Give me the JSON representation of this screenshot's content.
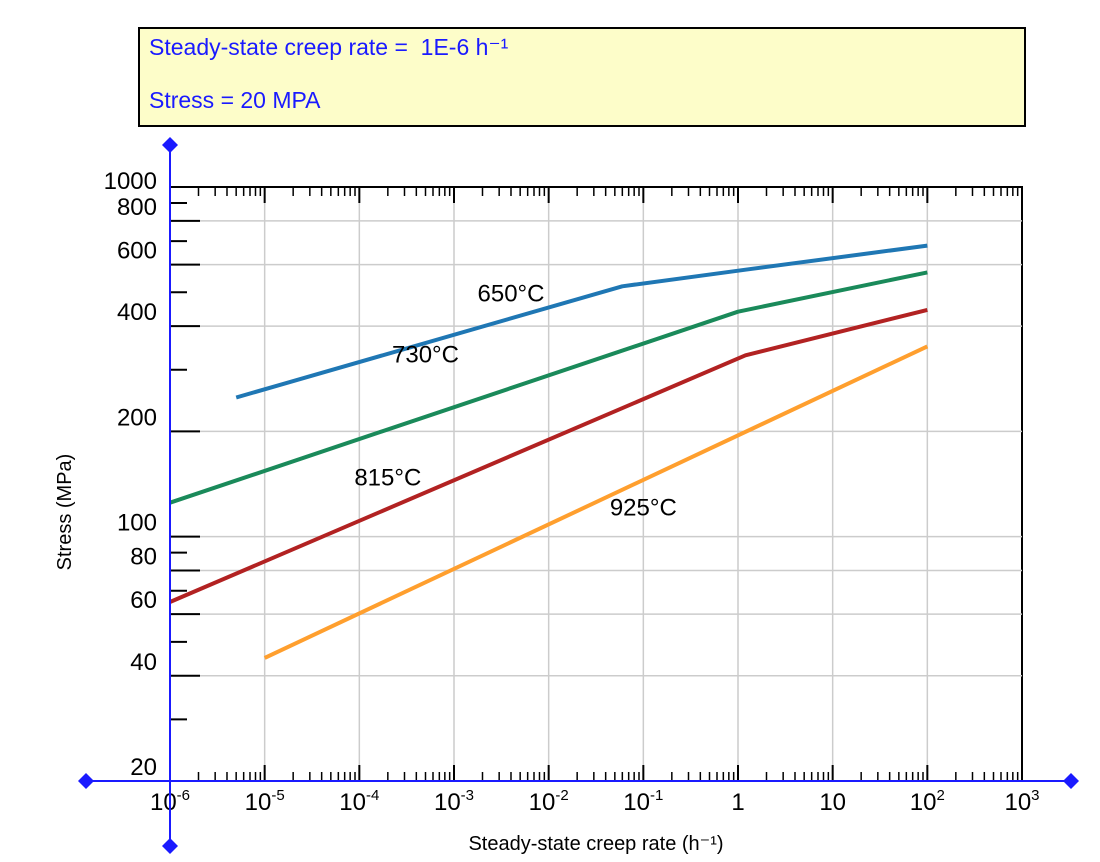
{
  "readout": {
    "rate_line": "Steady-state creep rate =  1E-6 h⁻¹",
    "stress_line": "Stress = 20 MPA"
  },
  "colors": {
    "readout_text": "#1a1aff",
    "readout_bg": "#fdfdc9",
    "control_axis": "#1a1aff",
    "grid": "#cccccc"
  },
  "chart_data": {
    "type": "line",
    "title": "",
    "xlabel": "Steady-state creep rate (h⁻¹)",
    "ylabel": "Stress (MPa)",
    "x_scale": "log",
    "y_scale": "log",
    "xlim": [
      1e-06,
      1000
    ],
    "ylim": [
      20,
      1000
    ],
    "grid": true,
    "x_ticks": [
      {
        "value": 1e-06,
        "base": "10",
        "exp": "-6"
      },
      {
        "value": 1e-05,
        "base": "10",
        "exp": "-5"
      },
      {
        "value": 0.0001,
        "base": "10",
        "exp": "-4"
      },
      {
        "value": 0.001,
        "base": "10",
        "exp": "-3"
      },
      {
        "value": 0.01,
        "base": "10",
        "exp": "-2"
      },
      {
        "value": 0.1,
        "base": "10",
        "exp": "-1"
      },
      {
        "value": 1,
        "base": "1",
        "exp": ""
      },
      {
        "value": 10,
        "base": "10",
        "exp": ""
      },
      {
        "value": 100,
        "base": "10",
        "exp": "2"
      },
      {
        "value": 1000,
        "base": "10",
        "exp": "3"
      }
    ],
    "y_ticks": [
      {
        "value": 1000,
        "label": "1000"
      },
      {
        "value": 800,
        "label": "800"
      },
      {
        "value": 600,
        "label": "600"
      },
      {
        "value": 400,
        "label": "400"
      },
      {
        "value": 200,
        "label": "200"
      },
      {
        "value": 100,
        "label": "100"
      },
      {
        "value": 80,
        "label": "80"
      },
      {
        "value": 60,
        "label": "60"
      },
      {
        "value": 40,
        "label": "40"
      },
      {
        "value": 20,
        "label": "20"
      }
    ],
    "y_minor_ticks": [
      30,
      50,
      70,
      90,
      300,
      500,
      700,
      900
    ],
    "series": [
      {
        "name": "650°C",
        "color": "#1f77b4",
        "x": [
          5e-06,
          0.06,
          1.2,
          100
        ],
        "y": [
          250,
          520,
          580,
          680
        ],
        "label_at": {
          "x": 0.004,
          "y": 470
        }
      },
      {
        "name": "730°C",
        "color": "#1a8a5a",
        "x": [
          1e-06,
          1.0,
          100
        ],
        "y": [
          125,
          440,
          570
        ],
        "label_at": {
          "x": 0.0005,
          "y": 315
        }
      },
      {
        "name": "815°C",
        "color": "#b22222",
        "x": [
          1e-06,
          1.2,
          100
        ],
        "y": [
          65,
          330,
          445
        ],
        "label_at": {
          "x": 0.0002,
          "y": 140
        }
      },
      {
        "name": "925°C",
        "color": "#ff9f2e",
        "x": [
          1e-05,
          100
        ],
        "y": [
          45,
          350
        ],
        "label_at": {
          "x": 0.1,
          "y": 115
        }
      }
    ]
  }
}
